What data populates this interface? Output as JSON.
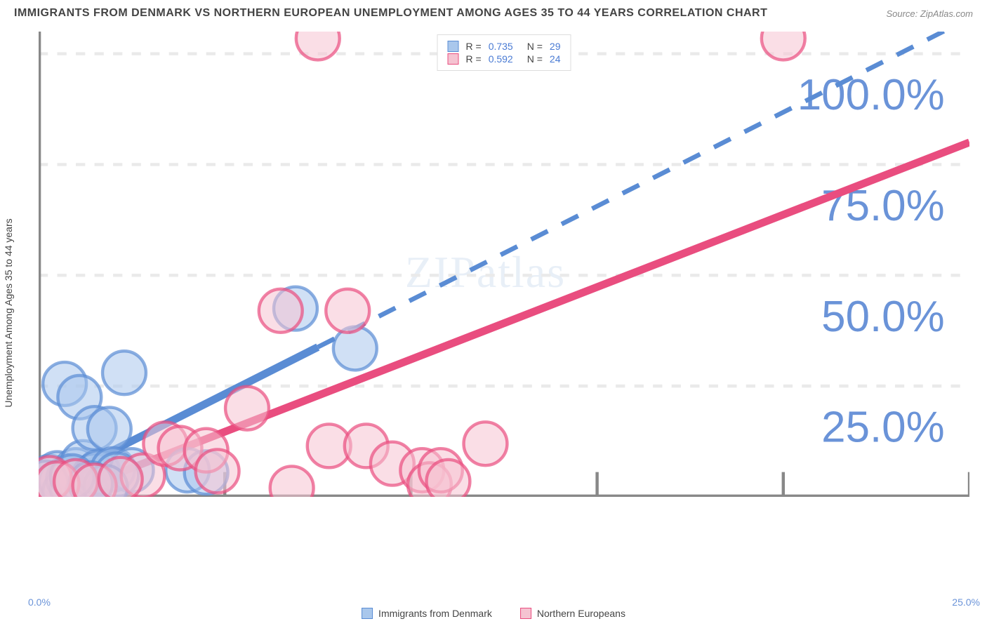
{
  "title": "IMMIGRANTS FROM DENMARK VS NORTHERN EUROPEAN UNEMPLOYMENT AMONG AGES 35 TO 44 YEARS CORRELATION CHART",
  "source": "Source: ZipAtlas.com",
  "y_axis_label": "Unemployment Among Ages 35 to 44 years",
  "watermark": "ZIPatlas",
  "chart": {
    "type": "scatter",
    "xlim": [
      0,
      25
    ],
    "ylim": [
      0,
      105
    ],
    "x_ticks": [
      0,
      5,
      10,
      15,
      20,
      25
    ],
    "x_tick_labels": [
      "0.0%",
      "",
      "",
      "",
      "",
      "25.0%"
    ],
    "y_ticks": [
      25,
      50,
      75,
      100
    ],
    "y_tick_labels": [
      "25.0%",
      "50.0%",
      "75.0%",
      "100.0%"
    ],
    "grid_color": "#eaeaea",
    "axis_color": "#888888",
    "tick_label_color": "#6a93d8",
    "background_color": "#ffffff"
  },
  "series": [
    {
      "name": "Immigrants from Denmark",
      "color_fill": "#a9c7ec",
      "color_stroke": "#5a8cd4",
      "line_solid_end": 7.5,
      "line_start": {
        "x": 0,
        "y": 2
      },
      "line_end": {
        "x": 25,
        "y": 108
      },
      "marker_radius": 7,
      "R": "0.735",
      "N": "29",
      "points": [
        {
          "x": 0.3,
          "y": 4.5
        },
        {
          "x": 0.4,
          "y": 2.5
        },
        {
          "x": 0.5,
          "y": 5.3
        },
        {
          "x": 0.6,
          "y": 3.5
        },
        {
          "x": 0.7,
          "y": 1.2
        },
        {
          "x": 0.8,
          "y": 4.0
        },
        {
          "x": 0.9,
          "y": 2.0
        },
        {
          "x": 1.0,
          "y": 6.0
        },
        {
          "x": 1.1,
          "y": 3.8
        },
        {
          "x": 1.2,
          "y": 7.8
        },
        {
          "x": 1.3,
          "y": 0.8
        },
        {
          "x": 1.5,
          "y": 4.8
        },
        {
          "x": 0.7,
          "y": 25.5
        },
        {
          "x": 1.1,
          "y": 22.5
        },
        {
          "x": 1.5,
          "y": 15.5
        },
        {
          "x": 1.9,
          "y": 15.3
        },
        {
          "x": 1.6,
          "y": 5.5
        },
        {
          "x": 2.0,
          "y": 6.2
        },
        {
          "x": 2.3,
          "y": 28.0
        },
        {
          "x": 2.5,
          "y": 6.0
        },
        {
          "x": 2.1,
          "y": 5.0
        },
        {
          "x": 4.0,
          "y": 6.0
        },
        {
          "x": 4.5,
          "y": 5.5
        },
        {
          "x": 6.9,
          "y": 42.5
        },
        {
          "x": 8.5,
          "y": 33.5
        },
        {
          "x": 1.8,
          "y": 2.2
        },
        {
          "x": 0.2,
          "y": 3.2
        },
        {
          "x": 0.9,
          "y": 4.6
        },
        {
          "x": 1.4,
          "y": 3.0
        }
      ]
    },
    {
      "name": "Northern Europeans",
      "color_fill": "#f5c3d1",
      "color_stroke": "#e94d7f",
      "line_solid_end": 25,
      "line_start": {
        "x": 0.5,
        "y": 0
      },
      "line_end": {
        "x": 25,
        "y": 80
      },
      "marker_radius": 7,
      "R": "0.592",
      "N": "24",
      "points": [
        {
          "x": 0.3,
          "y": 4.2
        },
        {
          "x": 0.5,
          "y": 3.0
        },
        {
          "x": 1.0,
          "y": 3.5
        },
        {
          "x": 1.5,
          "y": 2.5
        },
        {
          "x": 2.8,
          "y": 4.8
        },
        {
          "x": 3.4,
          "y": 12.0
        },
        {
          "x": 3.8,
          "y": 11.0
        },
        {
          "x": 4.5,
          "y": 10.5
        },
        {
          "x": 4.8,
          "y": 5.8
        },
        {
          "x": 5.6,
          "y": 20.0
        },
        {
          "x": 6.5,
          "y": 42.0
        },
        {
          "x": 6.8,
          "y": 2.0
        },
        {
          "x": 7.5,
          "y": 103.5
        },
        {
          "x": 7.8,
          "y": 11.5
        },
        {
          "x": 8.3,
          "y": 42.0
        },
        {
          "x": 8.8,
          "y": 11.5
        },
        {
          "x": 9.5,
          "y": 7.5
        },
        {
          "x": 10.3,
          "y": 6.0
        },
        {
          "x": 10.5,
          "y": 2.8
        },
        {
          "x": 10.8,
          "y": 6.0
        },
        {
          "x": 11.0,
          "y": 3.5
        },
        {
          "x": 12.0,
          "y": 12.0
        },
        {
          "x": 20.0,
          "y": 103.5
        },
        {
          "x": 2.2,
          "y": 4.0
        }
      ]
    }
  ],
  "legend_bottom": [
    {
      "label": "Immigrants from Denmark",
      "fill": "#a9c7ec",
      "stroke": "#5a8cd4"
    },
    {
      "label": "Northern Europeans",
      "fill": "#f5c3d1",
      "stroke": "#e94d7f"
    }
  ]
}
